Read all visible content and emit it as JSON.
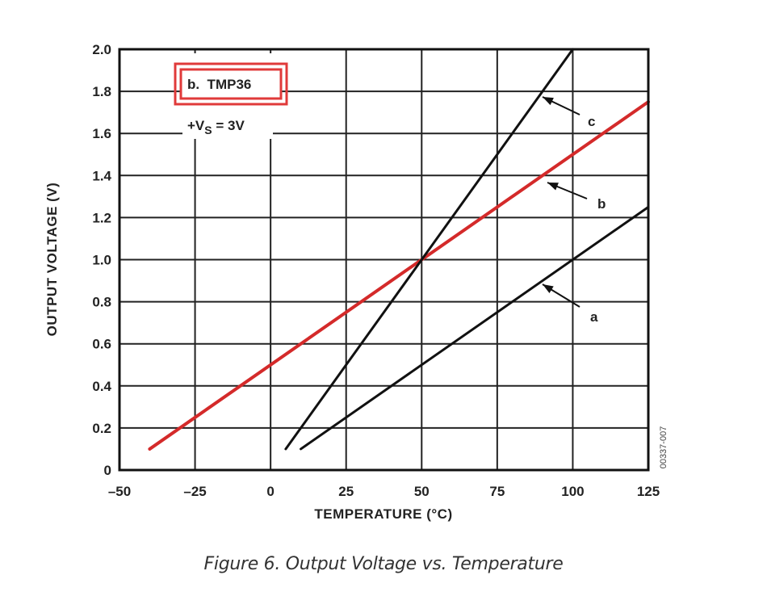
{
  "chart_data": {
    "type": "line",
    "title": "",
    "caption": "Figure 6. Output Voltage vs. Temperature",
    "xlabel": "TEMPERATURE (°C)",
    "ylabel": "OUTPUT VOLTAGE (V)",
    "xlim": [
      -50,
      125
    ],
    "ylim": [
      0,
      2.0
    ],
    "xticks": [
      "–50",
      "–25",
      "0",
      "25",
      "50",
      "75",
      "100",
      "125"
    ],
    "yticks": [
      "0",
      "0.2",
      "0.4",
      "0.6",
      "0.8",
      "1.0",
      "1.2",
      "1.4",
      "1.6",
      "1.8",
      "2.0"
    ],
    "grid": true,
    "figure_code": "00337-007",
    "legend": {
      "highlighted_entry": "b.  TMP36",
      "supply_text": "+VS = 3V",
      "supply_prefix": "+V",
      "supply_sub": "S",
      "supply_suffix": " = 3V"
    },
    "series": [
      {
        "name": "a",
        "label": "a",
        "color": "#111111",
        "x": [
          10,
          125
        ],
        "values": [
          0.1,
          1.25
        ]
      },
      {
        "name": "b",
        "label": "b",
        "color": "#d42a2a",
        "x": [
          -40,
          125
        ],
        "values": [
          0.1,
          1.75
        ]
      },
      {
        "name": "c",
        "label": "c",
        "color": "#111111",
        "x": [
          5,
          100
        ],
        "values": [
          0.1,
          2.0
        ]
      }
    ],
    "highlight_color": "#e03a3a"
  }
}
